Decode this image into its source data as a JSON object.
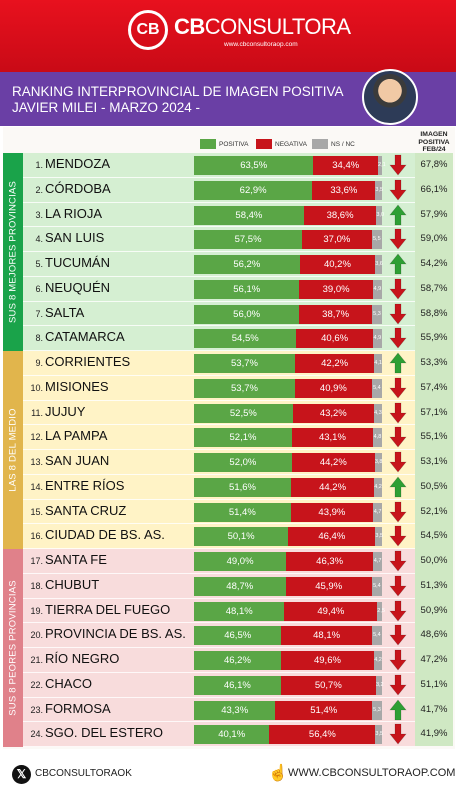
{
  "header": {
    "brand_mark": "CB",
    "brand_bold": "CB",
    "brand_rest": "CONSULTORA",
    "brand_url": "www.cbconsultoraop.com"
  },
  "title": {
    "line1": "RANKING INTERPROVINCIAL DE IMAGEN POSITIVA",
    "line2": "JAVIER MILEI - MARZO 2024 -"
  },
  "legend": {
    "positive": "POSITIVA",
    "negative": "NEGATIVA",
    "ns": "NS / NC"
  },
  "feb_header": [
    "IMAGEN",
    "POSITIVA",
    "FEB/24"
  ],
  "groups": [
    "SUS 8 MEJORES PROVINCIAS",
    "LAS 8 DEL MEDIO",
    "SUS 8 PEORES PROVINCIAS"
  ],
  "colors": {
    "positive": "#5aa646",
    "negative": "#c7141b",
    "ns": "#a8a8a8",
    "arrow_up": "#2e9f34",
    "arrow_down": "#c7141b"
  },
  "chart_data": {
    "type": "bar",
    "stacked": true,
    "orientation": "horizontal",
    "categories": [
      "1. MENDOZA",
      "2. CÓRDOBA",
      "3. LA RIOJA",
      "4. SAN LUIS",
      "5. TUCUMÁN",
      "6. NEUQUÉN",
      "7. SALTA",
      "8. CATAMARCA",
      "9. CORRIENTES",
      "10. MISIONES",
      "11. JUJUY",
      "12. LA PAMPA",
      "13. SAN JUAN",
      "14. ENTRE RÍOS",
      "15. SANTA CRUZ",
      "16. CIUDAD DE BS. AS.",
      "17. SANTA FE",
      "18. CHUBUT",
      "19. TIERRA DEL FUEGO",
      "20. PROVINCIA DE BS. AS.",
      "21. RÍO NEGRO",
      "22. CHACO",
      "23. FORMOSA",
      "24. SGO. DEL ESTERO"
    ],
    "ranks": [
      "1.",
      "2.",
      "3.",
      "4.",
      "5.",
      "6.",
      "7.",
      "8.",
      "9.",
      "10.",
      "11.",
      "12.",
      "13.",
      "14.",
      "15.",
      "16.",
      "17.",
      "18.",
      "19.",
      "20.",
      "21.",
      "22.",
      "23.",
      "24."
    ],
    "provinces": [
      "MENDOZA",
      "CÓRDOBA",
      "LA RIOJA",
      "SAN LUIS",
      "TUCUMÁN",
      "NEUQUÉN",
      "SALTA",
      "CATAMARCA",
      "CORRIENTES",
      "MISIONES",
      "JUJUY",
      "LA PAMPA",
      "SAN JUAN",
      "ENTRE RÍOS",
      "SANTA CRUZ",
      "CIUDAD DE BS. AS.",
      "SANTA FE",
      "CHUBUT",
      "TIERRA DEL FUEGO",
      "PROVINCIA DE BS. AS.",
      "RÍO NEGRO",
      "CHACO",
      "FORMOSA",
      "SGO. DEL ESTERO"
    ],
    "series": [
      {
        "name": "POSITIVA",
        "values": [
          63.5,
          62.9,
          58.4,
          57.5,
          56.2,
          56.1,
          56.0,
          54.5,
          53.7,
          53.7,
          52.5,
          52.1,
          52.0,
          51.6,
          51.4,
          50.1,
          49.0,
          48.7,
          48.1,
          46.5,
          46.2,
          46.1,
          43.3,
          40.1
        ],
        "labels": [
          "63,5%",
          "62,9%",
          "58,4%",
          "57,5%",
          "56,2%",
          "56,1%",
          "56,0%",
          "54,5%",
          "53,7%",
          "53,7%",
          "52,5%",
          "52,1%",
          "52,0%",
          "51,6%",
          "51,4%",
          "50,1%",
          "49,0%",
          "48,7%",
          "48,1%",
          "46,5%",
          "46,2%",
          "46,1%",
          "43,3%",
          "40,1%"
        ]
      },
      {
        "name": "NEGATIVA",
        "values": [
          34.4,
          33.6,
          38.6,
          37.0,
          40.2,
          39.0,
          38.7,
          40.6,
          42.2,
          40.9,
          43.2,
          43.1,
          44.2,
          44.2,
          43.9,
          46.4,
          46.3,
          45.9,
          49.4,
          48.1,
          49.6,
          50.7,
          51.4,
          56.4
        ],
        "labels": [
          "34,4%",
          "33,6%",
          "38,6%",
          "37,0%",
          "40,2%",
          "39,0%",
          "38,7%",
          "40,6%",
          "42,2%",
          "40,9%",
          "43,2%",
          "43,1%",
          "44,2%",
          "44,2%",
          "43,9%",
          "46,4%",
          "46,3%",
          "45,9%",
          "49,4%",
          "48,1%",
          "49,6%",
          "50,7%",
          "51,4%",
          "56,4%"
        ]
      },
      {
        "name": "NS / NC",
        "values": [
          2.1,
          3.5,
          3.0,
          5.5,
          3.6,
          4.9,
          5.3,
          4.9,
          4.1,
          5.4,
          4.3,
          4.8,
          3.8,
          4.2,
          4.7,
          3.5,
          4.7,
          5.4,
          2.5,
          5.4,
          4.2,
          3.2,
          5.3,
          3.5
        ],
        "labels": [
          "2,1",
          "3,5",
          "3,0",
          "5,5",
          "3,6",
          "4,9",
          "5,3",
          "4,9",
          "4,1",
          "5,4",
          "4,3",
          "4,8",
          "3,8",
          "4,2",
          "4,7",
          "3,5",
          "4,7",
          "5,4",
          "2,5",
          "5,4",
          "4,2",
          "3,2",
          "5,3",
          "3,5"
        ]
      }
    ],
    "trend": [
      "down",
      "down",
      "up",
      "down",
      "up",
      "down",
      "down",
      "down",
      "up",
      "down",
      "down",
      "down",
      "down",
      "up",
      "down",
      "down",
      "down",
      "down",
      "down",
      "down",
      "down",
      "down",
      "up",
      "down"
    ],
    "feb24": [
      "67,8%",
      "66,1%",
      "57,9%",
      "59,0%",
      "54,2%",
      "58,7%",
      "58,8%",
      "55,9%",
      "53,3%",
      "57,4%",
      "57,1%",
      "55,1%",
      "53,1%",
      "50,5%",
      "52,1%",
      "54,5%",
      "50,0%",
      "51,3%",
      "50,9%",
      "48,6%",
      "47,2%",
      "51,1%",
      "41,7%",
      "41,9%"
    ],
    "xlim": [
      0,
      100
    ]
  },
  "footer": {
    "handle": "CBCONSULTORAOK",
    "x_icon": "x-logo-icon",
    "hand_icon": "pointing-hand-icon",
    "site": "WWW.CBCONSULTORAOP.COM"
  }
}
